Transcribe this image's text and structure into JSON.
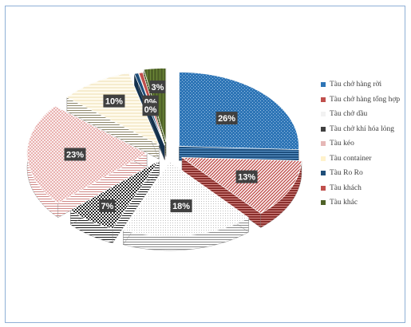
{
  "chart_data": {
    "type": "pie",
    "title": "",
    "legend_position": "right",
    "categories": [
      "Tàu chở hàng rời",
      "Tàu chở hàng tổng hợp",
      "Tàu chở dầu",
      "Tàu chở khí hóa lỏng",
      "Tàu kéo",
      "Tàu container",
      "Tàu Ro Ro",
      "Tàu khách",
      "Tàu khác"
    ],
    "values": [
      26,
      13,
      18,
      7,
      23,
      10,
      0,
      0,
      3
    ],
    "labels": [
      "26%",
      "13%",
      "18%",
      "7%",
      "23%",
      "10%",
      "0%",
      "0%",
      "3%"
    ],
    "colors": [
      "#2e75b6",
      "#c0504d",
      "#f2f2f2",
      "#404040",
      "#e6b8b7",
      "#fff2cc",
      "#1f4e79",
      "#c0504d",
      "#4f6228"
    ],
    "exploded": true,
    "three_d": true
  }
}
